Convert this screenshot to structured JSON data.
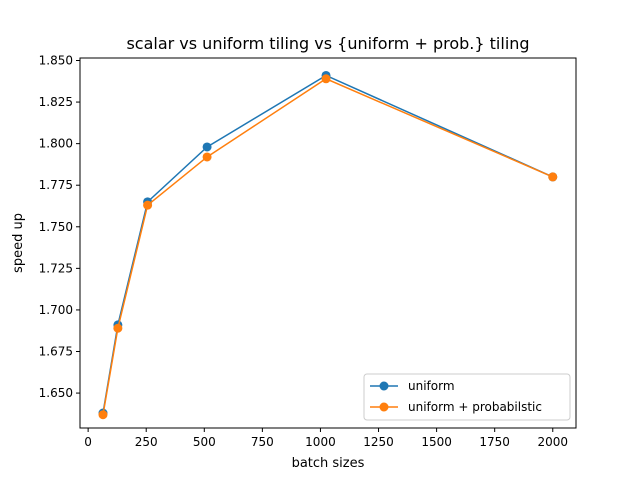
{
  "chart_data": {
    "type": "line",
    "title": "scalar vs uniform tiling vs {uniform + prob.} tiling",
    "xlabel": "batch sizes",
    "ylabel": "speed up",
    "xlim": [
      -35,
      2100
    ],
    "ylim": [
      1.629,
      1.8515
    ],
    "x_ticks": [
      0,
      250,
      500,
      750,
      1000,
      1250,
      1500,
      1750,
      2000
    ],
    "x_tick_labels": [
      "0",
      "250",
      "500",
      "750",
      "1000",
      "1250",
      "1500",
      "1750",
      "2000"
    ],
    "y_ticks": [
      1.65,
      1.675,
      1.7,
      1.725,
      1.75,
      1.775,
      1.8,
      1.825,
      1.85
    ],
    "y_tick_labels": [
      "1.650",
      "1.675",
      "1.700",
      "1.725",
      "1.750",
      "1.775",
      "1.800",
      "1.825",
      "1.850"
    ],
    "grid": false,
    "legend_position": "bottom-right",
    "x": [
      64,
      128,
      256,
      512,
      1024,
      2000
    ],
    "series": [
      {
        "name": "uniform",
        "color": "#1f77b4",
        "values": [
          1.638,
          1.691,
          1.765,
          1.798,
          1.841,
          1.78
        ]
      },
      {
        "name": "uniform + probabilstic",
        "color": "#ff7f0e",
        "values": [
          1.637,
          1.689,
          1.763,
          1.792,
          1.839,
          1.78
        ]
      }
    ]
  }
}
